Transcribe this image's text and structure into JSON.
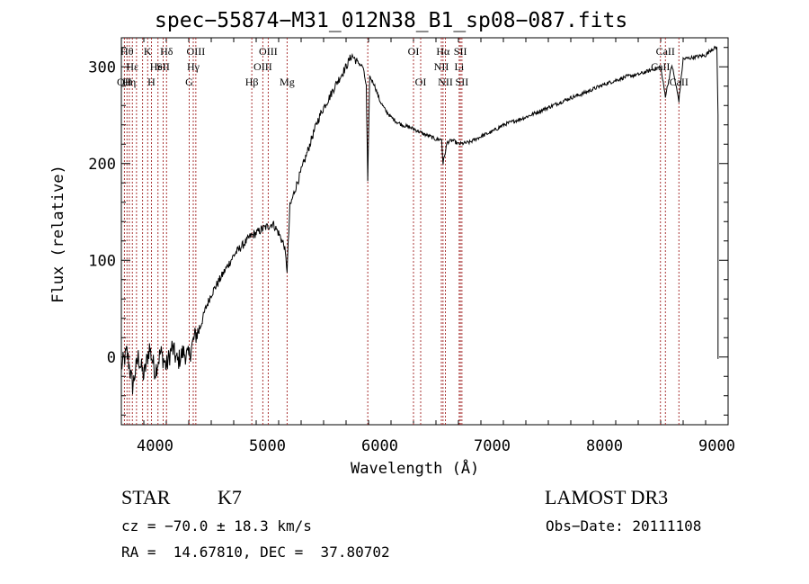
{
  "chart_data": {
    "type": "line",
    "title": "spec−55874−M31_012N38_B1_sp08−087.fits",
    "xlabel": "Wavelength (Å)",
    "ylabel": "Flux (relative)",
    "xlim": [
      3700,
      9100
    ],
    "ylim": [
      -70,
      330
    ],
    "xticks": [
      4000,
      5000,
      6000,
      7000,
      8000,
      9000
    ],
    "yticks": [
      0,
      100,
      200,
      300
    ],
    "series": [
      {
        "name": "spectrum",
        "x": [
          3700,
          3750,
          3800,
          3850,
          3900,
          3950,
          4000,
          4050,
          4100,
          4150,
          4200,
          4250,
          4300,
          4350,
          4400,
          4450,
          4500,
          4550,
          4600,
          4650,
          4700,
          4750,
          4800,
          4850,
          4900,
          4950,
          5000,
          5050,
          5100,
          5150,
          5175,
          5200,
          5250,
          5300,
          5350,
          5400,
          5450,
          5500,
          5550,
          5600,
          5650,
          5700,
          5750,
          5800,
          5850,
          5880,
          5893,
          5910,
          5950,
          6000,
          6050,
          6100,
          6150,
          6200,
          6250,
          6300,
          6350,
          6400,
          6450,
          6500,
          6550,
          6563,
          6600,
          6650,
          6700,
          6750,
          6800,
          6900,
          7000,
          7100,
          7200,
          7300,
          7400,
          7500,
          7600,
          7700,
          7800,
          7900,
          8000,
          8100,
          8200,
          8300,
          8400,
          8498,
          8542,
          8600,
          8662,
          8700,
          8800,
          8900,
          8950,
          9000
        ],
        "values": [
          -10,
          5,
          -30,
          0,
          -20,
          10,
          -15,
          5,
          -10,
          10,
          -5,
          5,
          0,
          20,
          30,
          50,
          65,
          75,
          85,
          95,
          105,
          112,
          118,
          125,
          128,
          132,
          135,
          138,
          128,
          115,
          90,
          155,
          175,
          192,
          210,
          228,
          245,
          258,
          268,
          280,
          290,
          300,
          312,
          305,
          300,
          280,
          180,
          290,
          282,
          265,
          255,
          248,
          243,
          240,
          238,
          236,
          233,
          230,
          228,
          225,
          225,
          200,
          222,
          224,
          220,
          221,
          222,
          228,
          233,
          240,
          244,
          248,
          253,
          258,
          263,
          268,
          272,
          277,
          282,
          286,
          290,
          292,
          296,
          300,
          270,
          302,
          265,
          308,
          310,
          312,
          318,
          320
        ]
      }
    ],
    "lines": [
      {
        "wl": 3727,
        "label": "OII",
        "row": 3
      },
      {
        "wl": 3750,
        "label": "Hθ",
        "row": 1
      },
      {
        "wl": 3771,
        "label": "Hη",
        "row": 3
      },
      {
        "wl": 3798,
        "label": "Hε",
        "row": 2
      },
      {
        "wl": 3835,
        "label": "",
        "row": 0
      },
      {
        "wl": 3889,
        "label": "",
        "row": 0
      },
      {
        "wl": 3934,
        "label": "K",
        "row": 1
      },
      {
        "wl": 3968,
        "label": "H",
        "row": 3
      },
      {
        "wl": 4026,
        "label": "HeI",
        "row": 2
      },
      {
        "wl": 4072,
        "label": "SII",
        "row": 2
      },
      {
        "wl": 4102,
        "label": "Hδ",
        "row": 1
      },
      {
        "wl": 4304,
        "label": "G",
        "row": 3
      },
      {
        "wl": 4340,
        "label": "Hγ",
        "row": 2
      },
      {
        "wl": 4363,
        "label": "OIII",
        "row": 1
      },
      {
        "wl": 4861,
        "label": "Hβ",
        "row": 3
      },
      {
        "wl": 4959,
        "label": "OIII",
        "row": 2
      },
      {
        "wl": 5007,
        "label": "OIII",
        "row": 1
      },
      {
        "wl": 5175,
        "label": "Mg",
        "row": 3
      },
      {
        "wl": 5893,
        "label": "",
        "row": 0
      },
      {
        "wl": 6300,
        "label": "OI",
        "row": 1
      },
      {
        "wl": 6364,
        "label": "OI",
        "row": 3
      },
      {
        "wl": 6548,
        "label": "NII",
        "row": 2
      },
      {
        "wl": 6563,
        "label": "Hα",
        "row": 1
      },
      {
        "wl": 6584,
        "label": "NII",
        "row": 3
      },
      {
        "wl": 6707,
        "label": "Li",
        "row": 2
      },
      {
        "wl": 6717,
        "label": "SII",
        "row": 1
      },
      {
        "wl": 6731,
        "label": "SII",
        "row": 3
      },
      {
        "wl": 8498,
        "label": "CaII",
        "row": 2
      },
      {
        "wl": 8542,
        "label": "CaII",
        "row": 1
      },
      {
        "wl": 8662,
        "label": "CaII",
        "row": 3
      }
    ]
  },
  "info": {
    "class": "STAR",
    "subclass": "K7",
    "survey": "LAMOST DR3",
    "cz": "cz = −70.0 ± 18.3 km/s",
    "obs_date": "Obs−Date: 20111108",
    "coords": "RA =  14.67810, DEC =  37.80702"
  }
}
